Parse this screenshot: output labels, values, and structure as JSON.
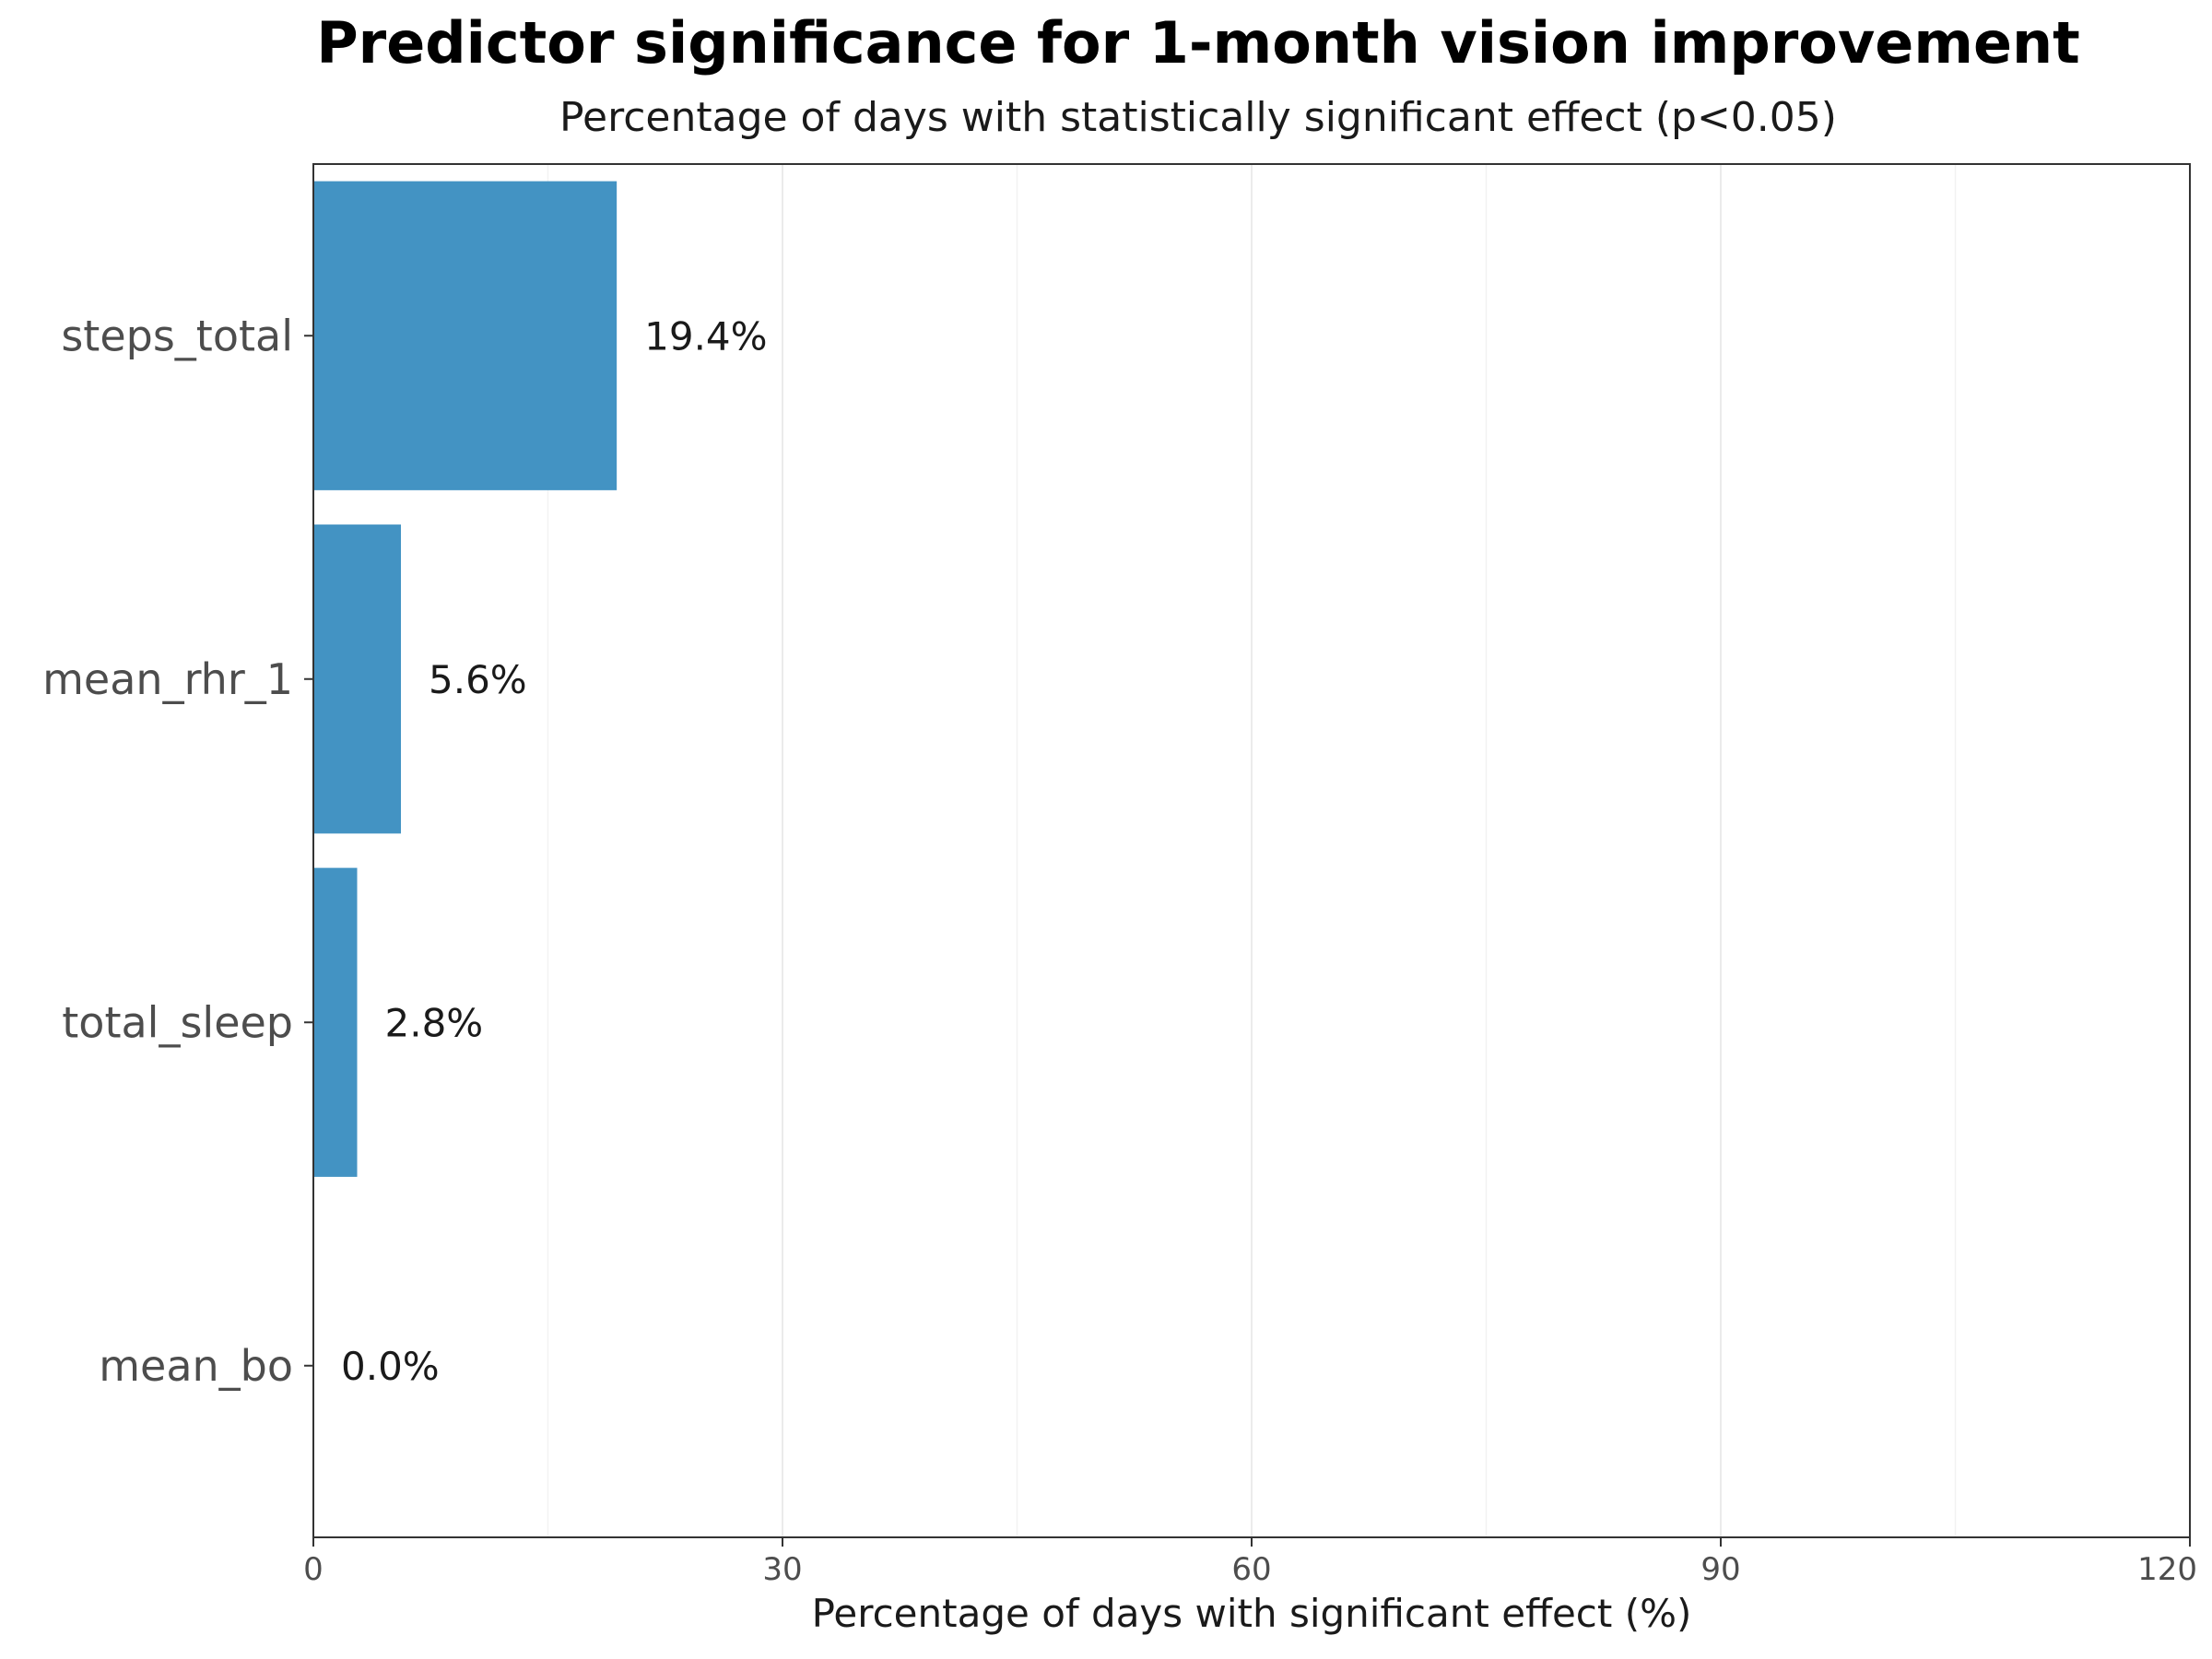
{
  "chart_data": {
    "type": "bar",
    "orientation": "horizontal",
    "title": "Predictor significance for 1-month vision improvement",
    "subtitle": "Percentage of days with statistically significant effect (p<0.05)",
    "xlabel": "Percentage of days with significant effect (%)",
    "ylabel": "",
    "categories": [
      "steps_total",
      "mean_rhr_1",
      "total_sleep",
      "mean_bo"
    ],
    "values": [
      19.4,
      5.6,
      2.8,
      0.0
    ],
    "data_labels": [
      "19.4%",
      "5.6%",
      "2.8%",
      "0.0%"
    ],
    "xlim": [
      0,
      120
    ],
    "xticks": [
      0,
      30,
      60,
      90,
      120
    ],
    "xtick_labels": [
      "0",
      "30",
      "60",
      "90",
      "120"
    ],
    "grid": "vertical major and minor",
    "legend": "none",
    "bar_color": "#4393c3"
  }
}
